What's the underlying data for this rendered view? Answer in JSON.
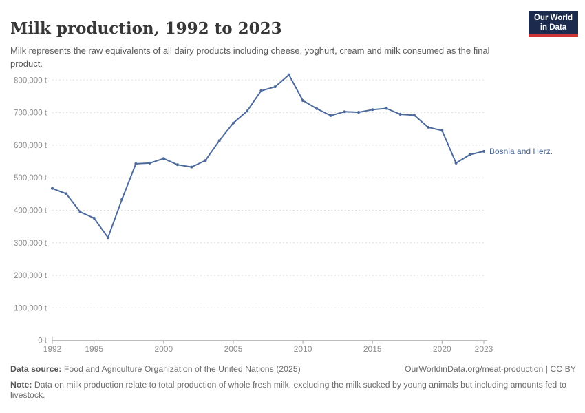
{
  "header": {
    "title": "Milk production, 1992 to 2023",
    "subtitle": "Milk represents the raw equivalents of all dairy products including cheese, yoghurt, cream and milk consumed as the final product."
  },
  "logo": {
    "line1": "Our World",
    "line2": "in Data",
    "bg_color": "#1b2a4d",
    "stripe_color": "#cf3434"
  },
  "chart_data": {
    "type": "line",
    "title": "Milk production, 1992 to 2023",
    "unit": "t",
    "entity": "Bosnia and Herz.",
    "x": [
      1992,
      1993,
      1994,
      1995,
      1996,
      1997,
      1998,
      1999,
      2000,
      2001,
      2002,
      2003,
      2004,
      2005,
      2006,
      2007,
      2008,
      2009,
      2010,
      2011,
      2012,
      2013,
      2014,
      2015,
      2016,
      2017,
      2018,
      2019,
      2020,
      2021,
      2022,
      2023
    ],
    "series": [
      {
        "name": "Bosnia and Herz.",
        "color": "#4c6a9c",
        "values": [
          467000,
          451000,
          395000,
          376000,
          316000,
          433000,
          543000,
          545000,
          559000,
          540000,
          533000,
          553000,
          614000,
          668000,
          705000,
          767000,
          779000,
          816000,
          737000,
          712000,
          691000,
          703000,
          701000,
          709000,
          713000,
          695000,
          692000,
          655000,
          645000,
          545000,
          571000,
          581000
        ]
      }
    ],
    "ylim": [
      0,
      820000
    ],
    "yticks": [
      {
        "value": 0,
        "label": "0 t"
      },
      {
        "value": 100000,
        "label": "100,000 t"
      },
      {
        "value": 200000,
        "label": "200,000 t"
      },
      {
        "value": 300000,
        "label": "300,000 t"
      },
      {
        "value": 400000,
        "label": "400,000 t"
      },
      {
        "value": 500000,
        "label": "500,000 t"
      },
      {
        "value": 600000,
        "label": "600,000 t"
      },
      {
        "value": 700000,
        "label": "700,000 t"
      },
      {
        "value": 800000,
        "label": "800,000 t"
      }
    ],
    "xticks": [
      1992,
      1995,
      2000,
      2005,
      2010,
      2015,
      2020,
      2023
    ],
    "grid": "horizontal-dashed",
    "legend_position": "line-end-label",
    "end_label": "Bosnia and Herz."
  },
  "footer": {
    "datasource_label": "Data source:",
    "datasource": "Food and Agriculture Organization of the United Nations (2025)",
    "link": "OurWorldinData.org/meat-production | CC BY",
    "note_label": "Note:",
    "note": "Data on milk production relate to total production of whole fresh milk, excluding the milk sucked by young animals but including amounts fed to livestock."
  },
  "colors": {
    "series_blue": "#4c6a9c",
    "gridline": "#dedede",
    "axis": "#a8a8a8",
    "axis_text": "#8c8c8c"
  }
}
